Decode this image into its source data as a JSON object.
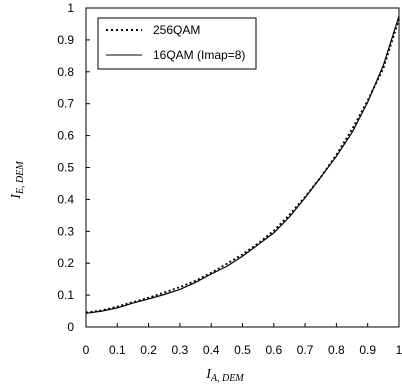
{
  "chart_data": {
    "type": "line",
    "title": "",
    "xlabel": "I",
    "xlabel_sub": "A, DEM",
    "ylabel": "I",
    "ylabel_sub": "E, DEM",
    "xlim": [
      0,
      1
    ],
    "ylim": [
      0,
      1
    ],
    "x_ticks": [
      "0",
      "0.1",
      "0.2",
      "0.3",
      "0.4",
      "0.5",
      "0.6",
      "0.7",
      "0.8",
      "0.9",
      "1"
    ],
    "y_ticks": [
      "0",
      "0.1",
      "0.2",
      "0.3",
      "0.4",
      "0.5",
      "0.6",
      "0.7",
      "0.8",
      "0.9",
      "1"
    ],
    "grid": false,
    "legend_position": "top-left",
    "series": [
      {
        "name": "256QAM",
        "style": "dotted",
        "color": "#000000",
        "x": [
          0,
          0.05,
          0.1,
          0.15,
          0.2,
          0.25,
          0.3,
          0.35,
          0.4,
          0.45,
          0.5,
          0.55,
          0.6,
          0.65,
          0.7,
          0.75,
          0.8,
          0.85,
          0.9,
          0.95,
          1.0
        ],
        "y": [
          0.045,
          0.052,
          0.064,
          0.078,
          0.092,
          0.108,
          0.125,
          0.145,
          0.17,
          0.198,
          0.228,
          0.262,
          0.302,
          0.352,
          0.408,
          0.47,
          0.54,
          0.62,
          0.71,
          0.81,
          0.965
        ]
      },
      {
        "name": "16QAM (Imap=8)",
        "style": "solid",
        "color": "#000000",
        "x": [
          0,
          0.05,
          0.1,
          0.15,
          0.2,
          0.25,
          0.3,
          0.35,
          0.4,
          0.45,
          0.5,
          0.55,
          0.6,
          0.65,
          0.7,
          0.75,
          0.8,
          0.85,
          0.9,
          0.95,
          1.0
        ],
        "y": [
          0.043,
          0.05,
          0.06,
          0.075,
          0.088,
          0.102,
          0.118,
          0.14,
          0.166,
          0.19,
          0.222,
          0.258,
          0.295,
          0.345,
          0.405,
          0.47,
          0.535,
          0.61,
          0.705,
          0.82,
          0.975
        ]
      }
    ]
  }
}
